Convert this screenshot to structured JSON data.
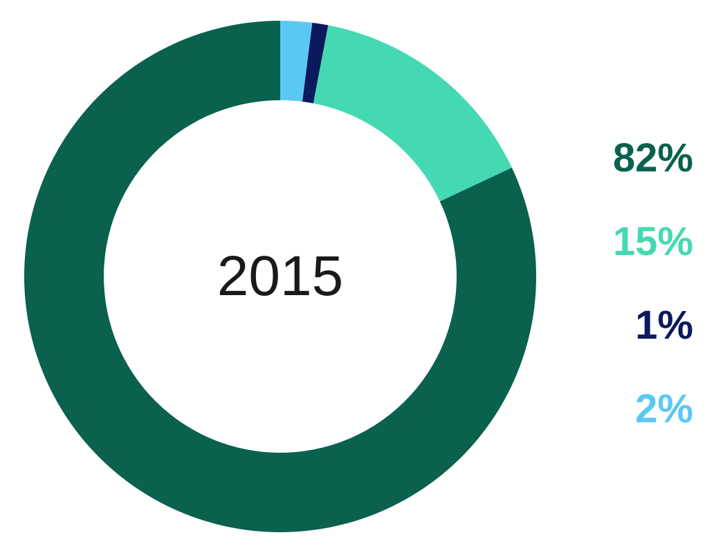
{
  "chart": {
    "type": "donut",
    "center_label": "2015",
    "center_label_fontsize": 82,
    "center_label_color": "#1a1a1a",
    "center_label_fontweight": "300",
    "background_color": "#ffffff",
    "outer_radius": 370,
    "inner_radius": 255,
    "start_angle_deg": 0,
    "direction": "counterclockwise",
    "slices": [
      {
        "value": 82,
        "color": "#09614e",
        "label": "82%"
      },
      {
        "value": 15,
        "color": "#45d9b3",
        "label": "15%"
      },
      {
        "value": 1,
        "color": "#0a1a5c",
        "label": "1%"
      },
      {
        "value": 2,
        "color": "#5ac8f5",
        "label": "2%"
      }
    ],
    "legend": {
      "fontsize": 58,
      "fontweight": "600",
      "items": [
        {
          "text": "82%",
          "color": "#09614e"
        },
        {
          "text": "15%",
          "color": "#45d9b3"
        },
        {
          "text": "1%",
          "color": "#0a1a5c"
        },
        {
          "text": "2%",
          "color": "#5ac8f5"
        }
      ]
    }
  }
}
